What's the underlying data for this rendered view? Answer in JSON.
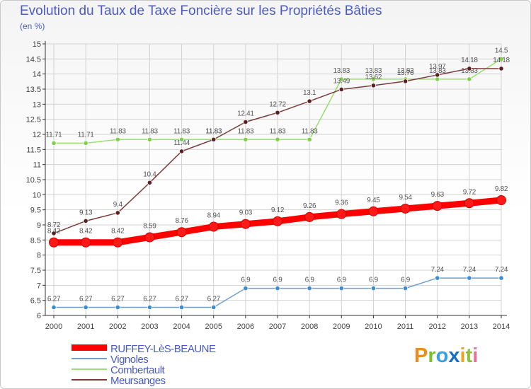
{
  "title": "Evolution du Taux de Taxe Foncière sur les Propriétés Bâties",
  "subtitle": "(en %)",
  "logo": "Proxiti",
  "colors": {
    "title": "#4a5bc8",
    "grid": "#d2d2d2",
    "axis": "#333333",
    "logo_p": "#f08a1a",
    "logo_r": "#7fbf2a",
    "logo_o": "#3aa0dc",
    "logo_x": "#1a6fc0",
    "logo_i": "#e8a51c",
    "logo_t": "#8dc13c",
    "logo_i2": "#f06a9a"
  },
  "chart_data": {
    "type": "line",
    "title": "Evolution du Taux de Taxe Foncière sur les Propriétés Bâties",
    "ylabel": "(en %)",
    "xlabel": "",
    "ylim": [
      6,
      15
    ],
    "y_tick_step": 0.5,
    "grid": true,
    "legend_position": "bottom-left",
    "x": [
      "2000",
      "2001",
      "2002",
      "2003",
      "2004",
      "2005",
      "2006",
      "2007",
      "2008",
      "2009",
      "2010",
      "2011",
      "2012",
      "2013",
      "2014"
    ],
    "series": [
      {
        "name": "RUFFEY-LèS-BEAUNE",
        "color": "#ff0000",
        "values": [
          8.42,
          8.42,
          8.42,
          8.59,
          8.76,
          8.94,
          9.03,
          9.12,
          9.26,
          9.36,
          9.45,
          9.54,
          9.63,
          9.72,
          9.82
        ],
        "labels": [
          "8.42",
          "8.42",
          "8.42",
          "8.59",
          "8.76",
          "8.94",
          "9.03",
          "9.12",
          "9.26",
          "9.36",
          "9.45",
          "9.54",
          "9.63",
          "9.72",
          "9.82"
        ]
      },
      {
        "name": "Vignoles",
        "color": "#6f9fd0",
        "marker": "#3d8ccd",
        "values": [
          6.27,
          6.27,
          6.27,
          6.27,
          6.27,
          6.27,
          6.9,
          6.9,
          6.9,
          6.9,
          6.9,
          6.9,
          7.24,
          7.24,
          7.24
        ],
        "labels": [
          "6.27",
          "6.27",
          "6.27",
          "6.27",
          "6.27",
          "6.27",
          "6.9",
          "6.9",
          "6.9",
          "6.9",
          "6.9",
          "6.9",
          "7.24",
          "7.24",
          "7.24"
        ]
      },
      {
        "name": "Combertault",
        "color": "#98e070",
        "marker": "#7fcf4a",
        "values": [
          11.71,
          11.71,
          11.83,
          11.83,
          11.83,
          11.83,
          11.83,
          11.83,
          11.83,
          13.83,
          13.83,
          13.83,
          13.83,
          13.83,
          14.5
        ],
        "labels": [
          "11.71",
          "11.71",
          "11.83",
          "11.83",
          "11.83",
          "11.83",
          "11.83",
          "11.83",
          "11.83",
          "13.83",
          "13.83",
          "13.83",
          "13.83",
          "13.83",
          "14.5"
        ]
      },
      {
        "name": "Meursanges",
        "color": "#7b3b3b",
        "marker": "#5a1f1f",
        "values": [
          8.72,
          9.13,
          9.4,
          10.4,
          11.44,
          11.83,
          12.41,
          12.72,
          13.1,
          13.49,
          13.62,
          13.76,
          13.97,
          14.18,
          14.18
        ],
        "labels": [
          "8.72",
          "9.13",
          "9.4",
          "10.4",
          "11.44",
          "11.83",
          "12.41",
          "12.72",
          "13.1",
          "13.49",
          "13.62",
          "13.76",
          "13.97",
          "14.18",
          "14.18"
        ]
      }
    ]
  }
}
